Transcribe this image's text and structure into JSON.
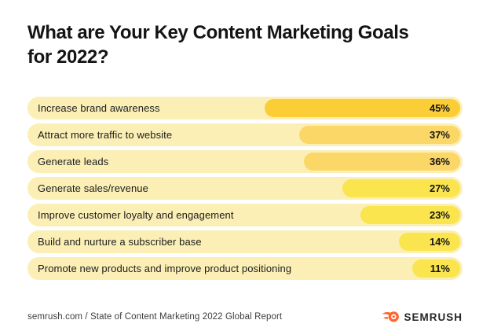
{
  "title": {
    "line1": "What are Your Key Content Marketing Goals",
    "line2": "for 2022?"
  },
  "chart_data": {
    "type": "bar",
    "orientation": "horizontal",
    "title": "What are Your Key Content Marketing Goals for 2022?",
    "categories": [
      "Increase brand awareness",
      "Attract more traffic to website",
      "Generate leads",
      "Generate sales/revenue",
      "Improve customer loyalty and engagement",
      "Build and nurture a subscriber base",
      "Promote new products and improve product positioning"
    ],
    "values": [
      45,
      37,
      36,
      27,
      23,
      14,
      11
    ],
    "value_labels": [
      "45%",
      "37%",
      "36%",
      "27%",
      "23%",
      "14%",
      "11%"
    ],
    "bar_colors": [
      "#FBCD37",
      "#FBD768",
      "#FBD768",
      "#FAE54E",
      "#FAE54E",
      "#FAE54E",
      "#FAE54E"
    ],
    "track_color": "#FBEFB6",
    "xlim": [
      0,
      100
    ],
    "grid": false,
    "legend": "none",
    "bars_right_aligned": true
  },
  "footer": {
    "source": "semrush.com / State of Content Marketing 2022 Global Report",
    "brand": "SEMRUSH"
  },
  "colors": {
    "background": "#FFFFFF",
    "title_text": "#141414",
    "label_text": "#1C1C1C",
    "track": "#FBEFB6",
    "bar_gold": "#FBCD37",
    "bar_amber": "#FBD768",
    "bar_lemon": "#FAE54E",
    "footer_text": "#3D3D3D",
    "brand_orange": "#FF642D",
    "brand_text": "#262626"
  }
}
